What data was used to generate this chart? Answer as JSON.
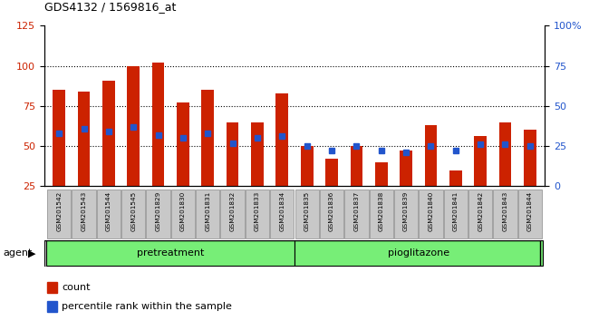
{
  "title": "GDS4132 / 1569816_at",
  "categories": [
    "GSM201542",
    "GSM201543",
    "GSM201544",
    "GSM201545",
    "GSM201829",
    "GSM201830",
    "GSM201831",
    "GSM201832",
    "GSM201833",
    "GSM201834",
    "GSM201835",
    "GSM201836",
    "GSM201837",
    "GSM201838",
    "GSM201839",
    "GSM201840",
    "GSM201841",
    "GSM201842",
    "GSM201843",
    "GSM201844"
  ],
  "red_values": [
    85,
    84,
    91,
    100,
    102,
    77,
    85,
    65,
    65,
    83,
    50,
    42,
    50,
    40,
    47,
    63,
    35,
    56,
    65,
    60
  ],
  "blue_values_left": [
    58,
    61,
    59,
    62,
    57,
    55,
    58,
    52,
    55,
    56,
    50,
    47,
    50,
    47,
    46,
    50,
    47,
    51,
    51,
    50
  ],
  "group1_label": "pretreatment",
  "group2_label": "pioglitazone",
  "group1_count": 10,
  "group2_count": 10,
  "agent_label": "agent",
  "ylim_left": [
    25,
    125
  ],
  "ylim_right": [
    0,
    100
  ],
  "yticks_left": [
    25,
    50,
    75,
    100,
    125
  ],
  "yticks_right": [
    0,
    25,
    50,
    75,
    100
  ],
  "ytick_labels_right": [
    "0",
    "25",
    "50",
    "75",
    "100%"
  ],
  "bar_color": "#cc2200",
  "dot_color": "#2255cc",
  "bar_width": 0.5,
  "legend_count_label": "count",
  "legend_pct_label": "percentile rank within the sample",
  "group_bg_color": "#77ee77",
  "xticklabel_bg": "#c8c8c8",
  "gridline_y": [
    50,
    75,
    100
  ],
  "left_axis_color": "#cc2200",
  "right_axis_color": "#2255cc"
}
